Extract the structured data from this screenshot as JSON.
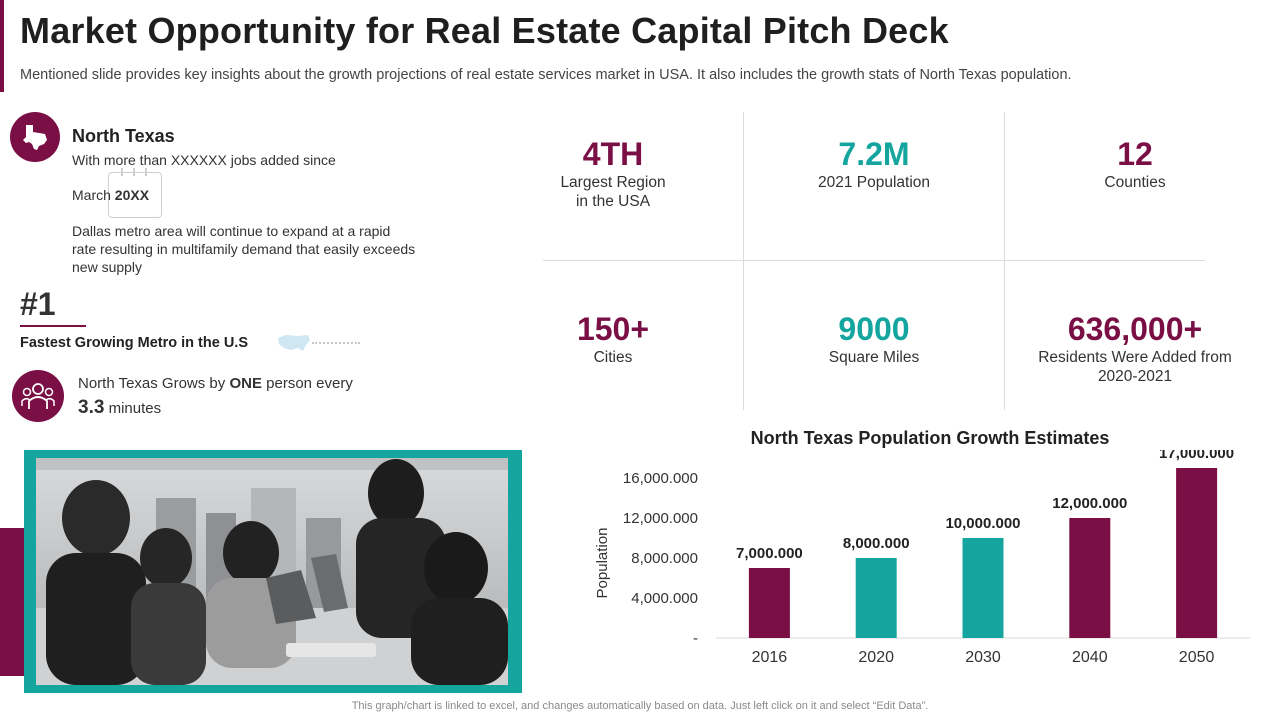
{
  "header": {
    "title": "Market Opportunity for Real Estate Capital Pitch Deck",
    "subtitle": "Mentioned slide provides key insights about the growth projections of real estate services market in USA. It also includes the growth stats of North Texas population."
  },
  "north_texas": {
    "heading": "North Texas",
    "line1": "With more than XXXXXX  jobs added since",
    "line2_prefix": "March ",
    "line2_year": "20XX",
    "paragraph": "Dallas metro area will continue to expand at a rapid rate resulting in multifamily demand that easily exceeds new supply"
  },
  "rank": {
    "value": "#1",
    "label": "Fastest Growing Metro in the U.S"
  },
  "growth": {
    "line1_prefix": "North Texas Grows by ",
    "line1_bold": "ONE",
    "line1_suffix": " person every",
    "value": "3.3",
    "unit": " minutes"
  },
  "stats": [
    {
      "value": "4TH",
      "label": "Largest Region in the USA",
      "color": "#7a0f45"
    },
    {
      "value": "7.2M",
      "label": "2021 Population",
      "color": "#13a59e"
    },
    {
      "value": "12",
      "label": "Counties",
      "color": "#7a0f45"
    },
    {
      "value": "150+",
      "label": "Cities",
      "color": "#7a0f45"
    },
    {
      "value": "9000",
      "label": "Square Miles",
      "color": "#13a59e"
    },
    {
      "value": "636,000+",
      "label": "Residents Were Added from 2020-2021",
      "color": "#7a0f45"
    }
  ],
  "colors": {
    "plum": "#7a0f45",
    "teal": "#13a59e"
  },
  "chart_data": {
    "type": "bar",
    "title": "North Texas Population Growth Estimates",
    "xlabel": "",
    "ylabel": "Population",
    "categories": [
      "2016",
      "2020",
      "2030",
      "2040",
      "2050"
    ],
    "values": [
      7000000,
      8000000,
      10000000,
      12000000,
      17000000
    ],
    "data_labels": [
      "7,000.000",
      "8,000.000",
      "10,000.000",
      "12,000.000",
      "17,000.000"
    ],
    "bar_colors": [
      "#7a0f45",
      "#13a59e",
      "#13a59e",
      "#7a0f45",
      "#7a0f45"
    ],
    "yticks": [
      0,
      4000000,
      8000000,
      12000000,
      16000000
    ],
    "ytick_labels": [
      "-",
      "4,000.000",
      "8,000.000",
      "12,000.000",
      "16,000.000"
    ],
    "ylim": [
      0,
      17000000
    ],
    "grid": false,
    "legend": "none"
  },
  "footer": "This graph/chart is linked to excel, and changes automatically based on data. Just left click on it and select “Edit Data”."
}
